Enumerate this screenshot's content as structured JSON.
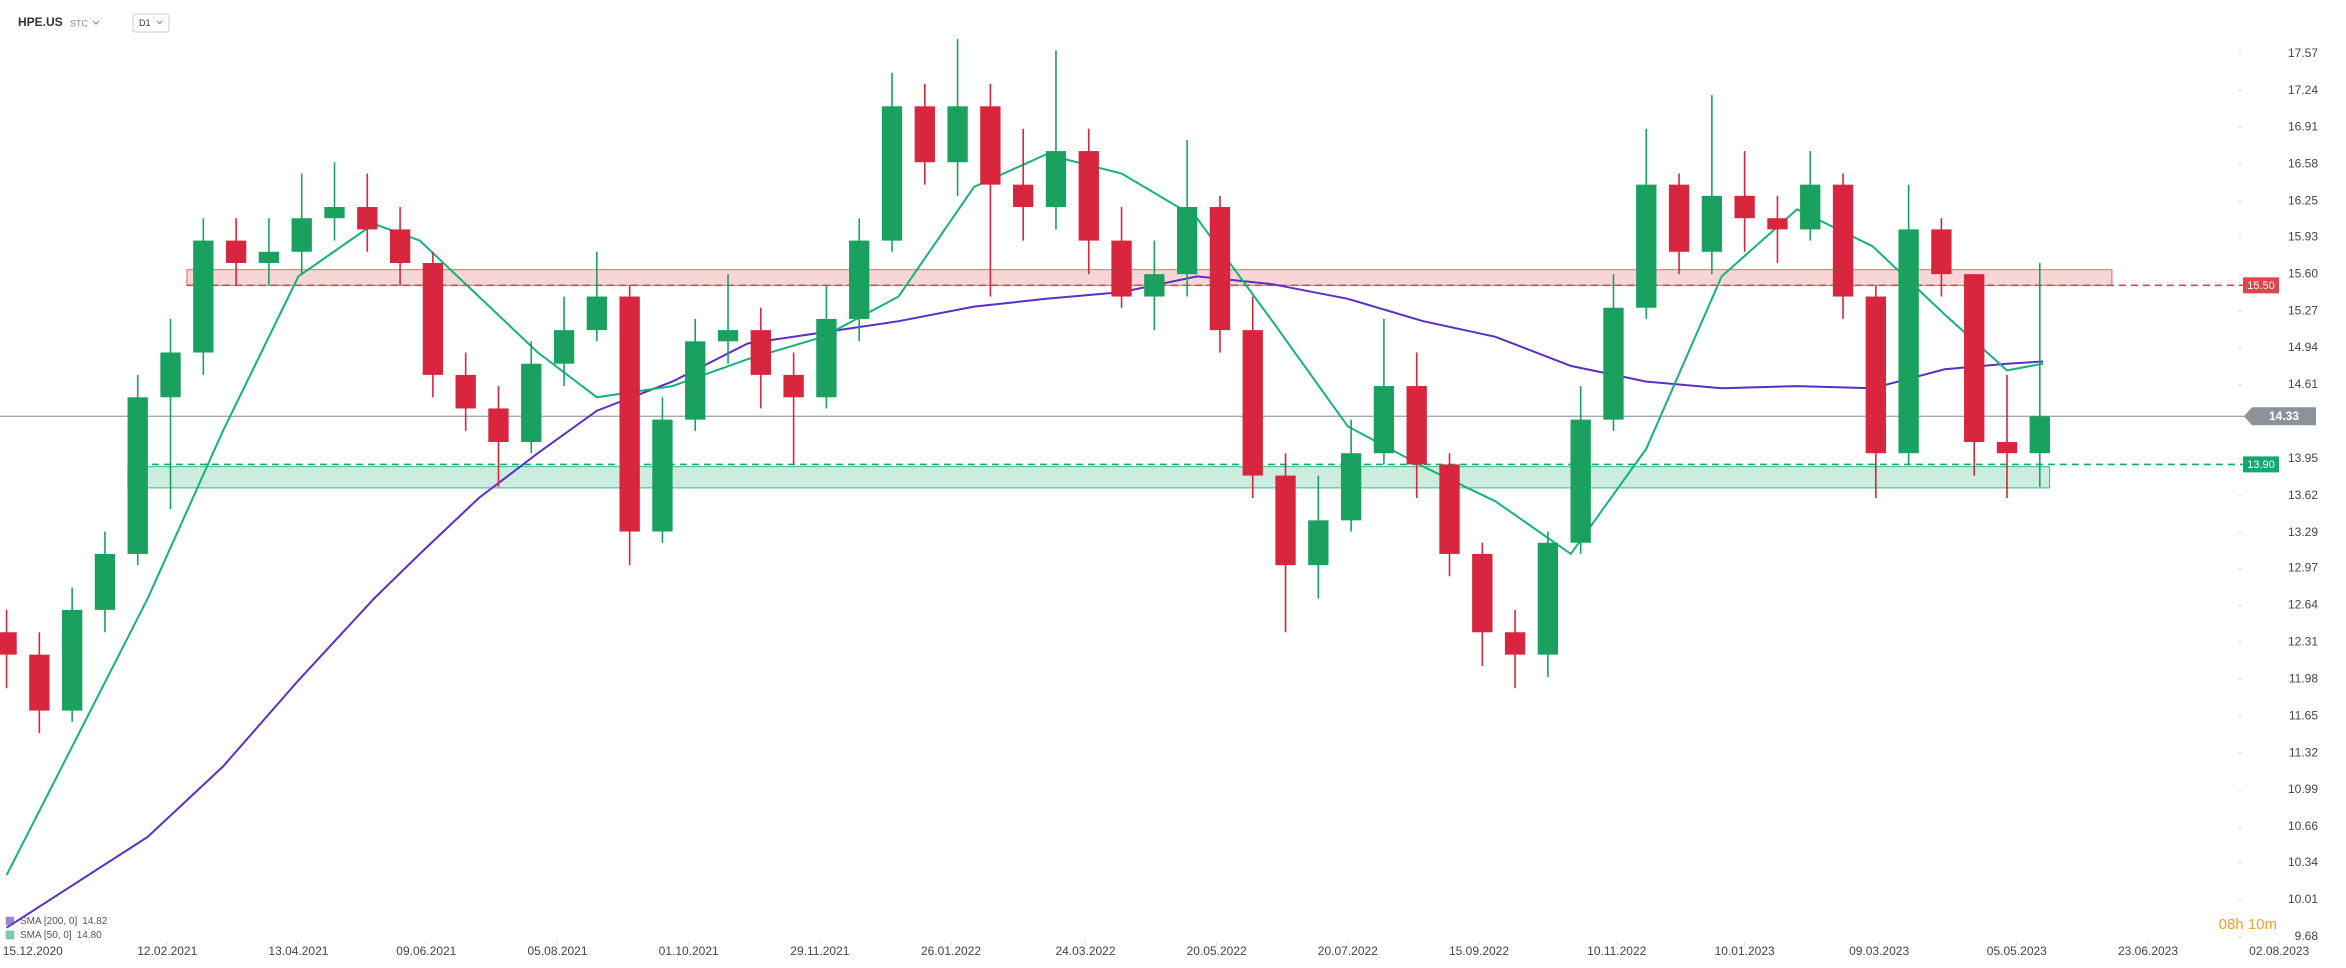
{
  "header": {
    "symbol": "HPE.US",
    "market": "STC",
    "interval": "D1"
  },
  "chart_data": {
    "type": "candlestick",
    "up_color": "#1aa160",
    "down_color": "#d7263d",
    "x": [
      0,
      10,
      20,
      30,
      40,
      50,
      60,
      70,
      80,
      90,
      100,
      110,
      120,
      130,
      140,
      150,
      160,
      170,
      180,
      190,
      200,
      210,
      220,
      230,
      240,
      250,
      260,
      270,
      280,
      290,
      300,
      310,
      320,
      330,
      340,
      350,
      360,
      370,
      380,
      390,
      400,
      410,
      420,
      430,
      440,
      450,
      460,
      470,
      480,
      490,
      500,
      510,
      520,
      530,
      540,
      550,
      560,
      570,
      580,
      590,
      600,
      610,
      620
    ],
    "open": [
      12.4,
      12.2,
      11.7,
      12.6,
      13.1,
      14.5,
      14.9,
      15.9,
      15.7,
      15.8,
      16.1,
      16.2,
      16.0,
      15.7,
      14.7,
      14.4,
      14.1,
      14.8,
      15.1,
      15.4,
      13.3,
      14.3,
      15.0,
      15.1,
      14.7,
      14.5,
      15.2,
      15.9,
      17.1,
      16.6,
      17.1,
      16.4,
      16.2,
      16.7,
      15.9,
      15.4,
      15.6,
      16.2,
      15.1,
      13.8,
      13.0,
      13.4,
      14.0,
      14.6,
      13.9,
      13.1,
      12.4,
      12.2,
      13.2,
      14.3,
      15.3,
      16.4,
      15.8,
      16.3,
      16.1,
      16.0,
      16.4,
      15.4,
      14.0,
      16.0,
      15.6,
      14.1,
      14.0
    ],
    "high": [
      12.6,
      12.4,
      12.8,
      13.3,
      14.7,
      15.2,
      16.1,
      16.1,
      16.1,
      16.5,
      16.6,
      16.5,
      16.2,
      15.8,
      14.9,
      14.6,
      15.0,
      15.4,
      15.8,
      15.5,
      14.5,
      15.2,
      15.6,
      15.3,
      14.9,
      15.5,
      16.1,
      17.4,
      17.3,
      17.7,
      17.3,
      16.9,
      17.6,
      16.9,
      16.2,
      15.9,
      16.8,
      16.3,
      15.4,
      14.0,
      13.8,
      14.3,
      15.2,
      14.9,
      14.0,
      13.2,
      12.6,
      13.3,
      14.6,
      15.6,
      16.9,
      16.5,
      17.2,
      16.7,
      16.3,
      16.7,
      16.5,
      15.5,
      16.4,
      16.1,
      15.6,
      14.7,
      15.7
    ],
    "low": [
      11.9,
      11.5,
      11.6,
      12.4,
      13.0,
      13.5,
      14.7,
      15.5,
      15.5,
      15.6,
      15.9,
      15.8,
      15.5,
      14.5,
      14.2,
      13.7,
      14.0,
      14.6,
      15.0,
      13.0,
      13.2,
      14.2,
      14.8,
      14.4,
      13.9,
      14.4,
      15.0,
      15.8,
      16.4,
      16.3,
      15.4,
      15.9,
      16.0,
      15.6,
      15.3,
      15.1,
      15.4,
      14.9,
      13.6,
      12.4,
      12.7,
      13.3,
      13.9,
      13.6,
      12.9,
      12.1,
      11.9,
      12.0,
      13.1,
      14.2,
      15.2,
      15.6,
      15.6,
      15.8,
      15.7,
      15.9,
      15.2,
      13.6,
      13.9,
      15.4,
      13.8,
      13.6,
      13.7
    ],
    "close": [
      12.2,
      11.7,
      12.6,
      13.1,
      14.5,
      14.9,
      15.9,
      15.7,
      15.8,
      16.1,
      16.2,
      16.0,
      15.7,
      14.7,
      14.4,
      14.1,
      14.8,
      15.1,
      15.4,
      13.3,
      14.3,
      15.0,
      15.1,
      14.7,
      14.5,
      15.2,
      15.9,
      17.1,
      16.6,
      17.1,
      16.4,
      16.2,
      16.7,
      15.9,
      15.4,
      15.6,
      16.2,
      15.1,
      13.8,
      13.0,
      13.4,
      14.0,
      14.6,
      13.9,
      13.1,
      12.4,
      12.2,
      13.2,
      14.3,
      15.3,
      16.4,
      15.8,
      16.3,
      16.1,
      16.0,
      16.4,
      15.4,
      14.0,
      16.0,
      15.6,
      14.1,
      14.0,
      14.33
    ],
    "series": [
      {
        "name": "SMA [200, 0]",
        "color": "#5a2fc4",
        "last_value": 14.82,
        "x": [
          0,
          43,
          66,
          89,
          112,
          126,
          144,
          162,
          180,
          203,
          226,
          249,
          272,
          295,
          317,
          340,
          363,
          386,
          409,
          432,
          454,
          477,
          500,
          523,
          546,
          569,
          591,
          610,
          621
        ],
        "values": [
          9.76,
          10.57,
          11.2,
          11.97,
          12.7,
          13.1,
          13.6,
          14.0,
          14.38,
          14.64,
          14.98,
          15.08,
          15.18,
          15.31,
          15.38,
          15.44,
          15.58,
          15.51,
          15.38,
          15.18,
          15.04,
          14.78,
          14.64,
          14.58,
          14.6,
          14.58,
          14.75,
          14.8,
          14.82
        ]
      },
      {
        "name": "SMA [50, 0]",
        "color": "#16b27a",
        "last_value": {
          "value": 14.8,
          "label": "14.80"
        },
        "x": [
          0,
          43,
          66,
          89,
          112,
          126,
          144,
          162,
          180,
          203,
          226,
          249,
          272,
          295,
          317,
          340,
          363,
          386,
          409,
          432,
          454,
          477,
          500,
          523,
          546,
          569,
          591,
          610,
          621
        ],
        "values": [
          10.23,
          12.7,
          14.2,
          15.58,
          16.05,
          15.9,
          15.4,
          14.9,
          14.5,
          14.6,
          14.84,
          15.04,
          15.4,
          16.38,
          16.67,
          16.5,
          16.1,
          15.18,
          14.24,
          13.88,
          13.57,
          13.1,
          14.04,
          15.58,
          16.18,
          15.85,
          15.24,
          14.74,
          14.8
        ]
      }
    ],
    "zones": [
      {
        "color": "#e0454d",
        "low": 15.5,
        "high": 15.64,
        "x": [
          55,
          642
        ],
        "level": {
          "value": 15.5,
          "label": "15.50"
        }
      },
      {
        "color": "#14a86e",
        "low": 13.69,
        "high": 13.88,
        "x": [
          37,
          623
        ],
        "level": {
          "value": 13.9,
          "label": "13.90"
        }
      }
    ],
    "last_price": 14.33,
    "xlim": [
      -2,
      678
    ],
    "xticks": [
      {
        "value": 8,
        "label": "15.12.2020"
      },
      {
        "value": 49,
        "label": "12.02.2021"
      },
      {
        "value": 89,
        "label": "13.04.2021"
      },
      {
        "value": 128,
        "label": "09.06.2021"
      },
      {
        "value": 168,
        "label": "05.08.2021"
      },
      {
        "value": 208,
        "label": "01.10.2021"
      },
      {
        "value": 248,
        "label": "29.11.2021"
      },
      {
        "value": 288,
        "label": "26.01.2022"
      },
      {
        "value": 329,
        "label": "24.03.2022"
      },
      {
        "value": 369,
        "label": "20.05.2022"
      },
      {
        "value": 409,
        "label": "20.07.2022"
      },
      {
        "value": 449,
        "label": "15.09.2022"
      },
      {
        "value": 491,
        "label": "10.11.2022"
      },
      {
        "value": 530,
        "label": "10.01.2023"
      },
      {
        "value": 571,
        "label": "09.03.2023"
      },
      {
        "value": 613,
        "label": "05.05.2023"
      },
      {
        "value": 653,
        "label": "23.06.2023"
      },
      {
        "value": 693,
        "label": "02.08.2023"
      }
    ],
    "ylim": [
      9.65,
      18.05
    ],
    "yticks": [
      9.68,
      10.01,
      10.34,
      10.66,
      10.99,
      11.32,
      11.65,
      11.98,
      12.31,
      12.64,
      12.97,
      13.29,
      13.62,
      13.95,
      14.61,
      14.94,
      15.27,
      {
        "value": 15.6,
        "label": "15.60"
      },
      15.93,
      16.25,
      16.58,
      16.91,
      17.24,
      17.57
    ],
    "timer": "08h 10m"
  }
}
